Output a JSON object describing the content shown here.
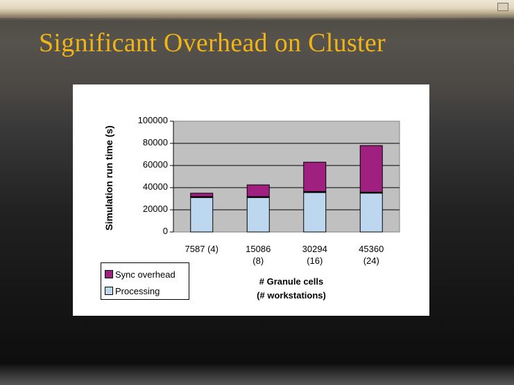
{
  "slide": {
    "title": "Significant Overhead on Cluster"
  },
  "chart_data": {
    "type": "bar",
    "stacked": true,
    "categories": [
      "7587 (4)",
      "15086 (8)",
      "30294 (16)",
      "45360 (24)"
    ],
    "category_lines": [
      [
        "7587 (4)"
      ],
      [
        "15086",
        "(8)"
      ],
      [
        "30294",
        "(16)"
      ],
      [
        "45360",
        "(24)"
      ]
    ],
    "series": [
      {
        "name": "Processing",
        "values": [
          31500,
          31500,
          36000,
          35500
        ],
        "color": "#bdd7ee"
      },
      {
        "name": "Sync overhead",
        "values": [
          3500,
          11000,
          27000,
          42500
        ],
        "color": "#a0207f"
      }
    ],
    "ylabel": "Simulation run time (s)",
    "xlabel_lines": [
      "# Granule cells",
      "(# workstations)"
    ],
    "ylim": [
      0,
      100000
    ],
    "yticks": [
      0,
      20000,
      40000,
      60000,
      80000,
      100000
    ],
    "ytick_labels": [
      "0",
      "20000",
      "40000",
      "60000",
      "80000",
      "100000"
    ],
    "legend_order": [
      "Sync overhead",
      "Processing"
    ],
    "plot_background": "#c0c0c0",
    "grid": true,
    "legend_position": "bottom-left"
  }
}
